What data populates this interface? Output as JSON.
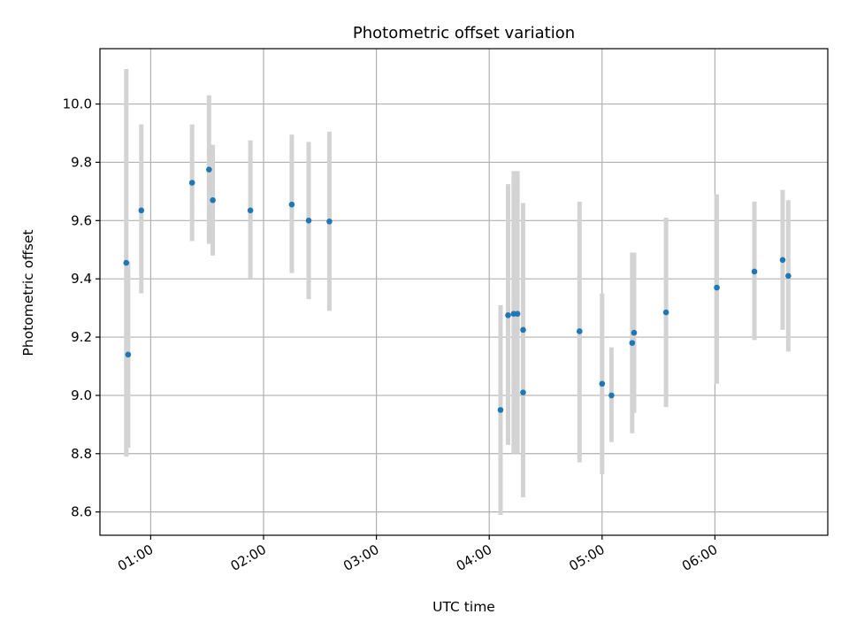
{
  "chart_data": {
    "type": "scatter",
    "title": "Photometric offset variation",
    "xlabel": "UTC time",
    "ylabel": "Photometric offset",
    "xlim": [
      "00:33",
      "07:00"
    ],
    "ylim": [
      8.52,
      10.19
    ],
    "x_ticks": [
      "01:00",
      "02:00",
      "03:00",
      "04:00",
      "05:00",
      "06:00"
    ],
    "y_ticks": [
      "8.6",
      "8.8",
      "9.0",
      "9.2",
      "9.4",
      "9.6",
      "9.8",
      "10.0"
    ],
    "grid": true,
    "marker_color": "#1f77b4",
    "errorbar_color": "#d3d3d3",
    "points": [
      {
        "x": "00:47",
        "y": 9.455,
        "low": 8.79,
        "high": 10.12
      },
      {
        "x": "00:48",
        "y": 9.14,
        "low": 8.82,
        "high": 9.46
      },
      {
        "x": "00:55",
        "y": 9.635,
        "low": 9.35,
        "high": 9.93
      },
      {
        "x": "01:22",
        "y": 9.73,
        "low": 9.53,
        "high": 9.93
      },
      {
        "x": "01:31",
        "y": 9.775,
        "low": 9.52,
        "high": 10.03
      },
      {
        "x": "01:33",
        "y": 9.67,
        "low": 9.48,
        "high": 9.86
      },
      {
        "x": "01:53",
        "y": 9.635,
        "low": 9.4,
        "high": 9.875
      },
      {
        "x": "02:15",
        "y": 9.655,
        "low": 9.42,
        "high": 9.895
      },
      {
        "x": "02:24",
        "y": 9.6,
        "low": 9.33,
        "high": 9.87
      },
      {
        "x": "02:35",
        "y": 9.597,
        "low": 9.29,
        "high": 9.905
      },
      {
        "x": "04:06",
        "y": 8.95,
        "low": 8.59,
        "high": 9.31
      },
      {
        "x": "04:10",
        "y": 9.275,
        "low": 8.83,
        "high": 9.725
      },
      {
        "x": "04:13",
        "y": 9.28,
        "low": 8.8,
        "high": 9.77
      },
      {
        "x": "04:15",
        "y": 9.28,
        "low": 8.8,
        "high": 9.77
      },
      {
        "x": "04:18",
        "y": 9.225,
        "low": 8.78,
        "high": 9.66
      },
      {
        "x": "04:18",
        "y": 9.01,
        "low": 8.65,
        "high": 9.38
      },
      {
        "x": "04:48",
        "y": 9.22,
        "low": 8.77,
        "high": 9.665
      },
      {
        "x": "05:00",
        "y": 9.04,
        "low": 8.73,
        "high": 9.35
      },
      {
        "x": "05:05",
        "y": 9.0,
        "low": 8.84,
        "high": 9.165
      },
      {
        "x": "05:16",
        "y": 9.18,
        "low": 8.87,
        "high": 9.49
      },
      {
        "x": "05:17",
        "y": 9.215,
        "low": 8.94,
        "high": 9.49
      },
      {
        "x": "05:34",
        "y": 9.285,
        "low": 8.96,
        "high": 9.61
      },
      {
        "x": "06:01",
        "y": 9.37,
        "low": 9.04,
        "high": 9.69
      },
      {
        "x": "06:21",
        "y": 9.425,
        "low": 9.19,
        "high": 9.665
      },
      {
        "x": "06:36",
        "y": 9.465,
        "low": 9.225,
        "high": 9.705
      },
      {
        "x": "06:39",
        "y": 9.41,
        "low": 9.15,
        "high": 9.67
      }
    ]
  }
}
